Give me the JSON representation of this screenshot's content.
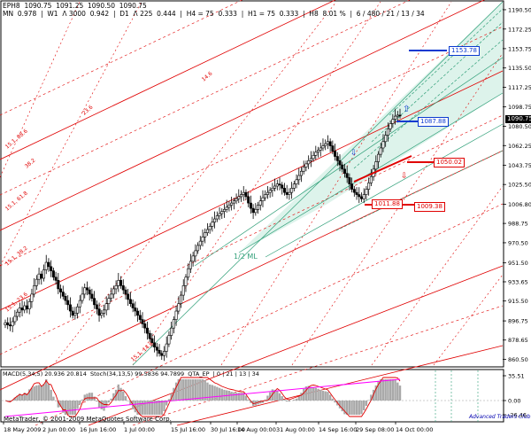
{
  "header": {
    "symbol_line": "EPH8  1090.75  1091.25  1090.50  1090.75",
    "stats_line": "MN  0.978  |  W1  Λ 3000  0.942  |  D1  Λ 225  0.444  |  H4 = 75  0.333  |  H1 = 75  0.333  |  H8  8.01 %  |  6 / 480 / 21 / 13 / 34"
  },
  "indicator_label": "MACD(5,34,5) 20.936 20.814  Stoch(34,13,5) 99.5836 94.7899  QTA_EP  | 0 | 21 | 13 | 34",
  "watermark": "MetaTrader, © 2001-2009 MetaQuotes Software Corp.",
  "watermark2": "Advanced Traders Club",
  "current_price": "1090.75",
  "price_boxes": {
    "b1": "1153.78",
    "b2": "1087.88",
    "r1": "1050.02",
    "r2": "1011.88",
    "r3": "1009.38"
  },
  "ml_label": "1/2 ML",
  "colors": {
    "bull": "#ffffff",
    "bear": "#000000",
    "pitchfork_red": "#e00000",
    "pitchfork_teal": "#2f9f78",
    "fill_teal": "#d2efe4",
    "blue": "#0b3ad0",
    "macd_hist": "#a9a9a9",
    "stoch_line": "#ff00ff"
  },
  "chart_data": {
    "type": "candlestick",
    "symbol": "EPH8",
    "y_axis_ticks": [
      1190.5,
      1172.25,
      1153.75,
      1135.5,
      1117.25,
      1098.75,
      1080.5,
      1062.25,
      1043.75,
      1025.5,
      1006.8,
      988.75,
      970.5,
      951.5,
      933.65,
      915.5,
      896.75,
      878.65,
      860.5
    ],
    "y_range": [
      855,
      1198
    ],
    "x_axis_labels": [
      "18 May 2009",
      "2 Jun 00:00",
      "16 Jun 16:00",
      "1 Jul 00:00",
      "15 Jul 16:00",
      "30 Jul 16:00",
      "14 Aug 00:00",
      "31 Aug 00:00",
      "14 Sep 16:00",
      "29 Sep 08:00",
      "14 Oct 00:00"
    ],
    "closes": [
      895,
      893,
      892,
      896,
      901,
      905,
      909,
      907,
      911,
      908,
      915,
      922,
      930,
      936,
      941,
      937,
      945,
      952,
      948,
      944,
      938,
      935,
      927,
      924,
      920,
      916,
      912,
      906,
      902,
      904,
      910,
      916,
      922,
      928,
      926,
      922,
      918,
      912,
      908,
      902,
      904,
      907,
      913,
      918,
      922,
      927,
      930,
      935,
      930,
      926,
      922,
      917,
      913,
      909,
      906,
      902,
      898,
      894,
      890,
      885,
      880,
      876,
      872,
      869,
      866,
      864,
      868,
      875,
      883,
      890,
      898,
      906,
      913,
      921,
      930,
      938,
      946,
      953,
      958,
      963,
      968,
      972,
      976,
      980,
      983,
      986,
      990,
      993,
      996,
      998,
      1000,
      1002,
      1004,
      1006,
      1008,
      1010,
      1012,
      1014,
      1016,
      1018,
      1014,
      1008,
      1003,
      999,
      1002,
      1006,
      1010,
      1013,
      1016,
      1018,
      1020,
      1022,
      1024,
      1026,
      1025,
      1022,
      1018,
      1016,
      1018,
      1022,
      1026,
      1030,
      1034,
      1038,
      1042,
      1045,
      1048,
      1050,
      1053,
      1056,
      1058,
      1060,
      1062,
      1064,
      1066,
      1062,
      1057,
      1052,
      1048,
      1044,
      1040,
      1036,
      1032,
      1026,
      1021,
      1018,
      1016,
      1014,
      1012,
      1016,
      1021,
      1027,
      1033,
      1040,
      1047,
      1054,
      1060,
      1066,
      1072,
      1078,
      1083,
      1087,
      1090,
      1091,
      1090.75
    ],
    "pitchfork_levels": [
      "15.1, 88.6",
      "15.1, 61.8",
      "15.1, 38.2",
      "15.1, 23.6",
      "15.1, 14.6",
      "38.2",
      "23.6",
      "14.6"
    ],
    "indicator": {
      "macd": [
        20.936,
        20.814
      ],
      "stochastic": [
        99.5836,
        94.7899
      ],
      "scale_ticks": [
        35.51,
        0.0,
        -26.46
      ]
    }
  }
}
